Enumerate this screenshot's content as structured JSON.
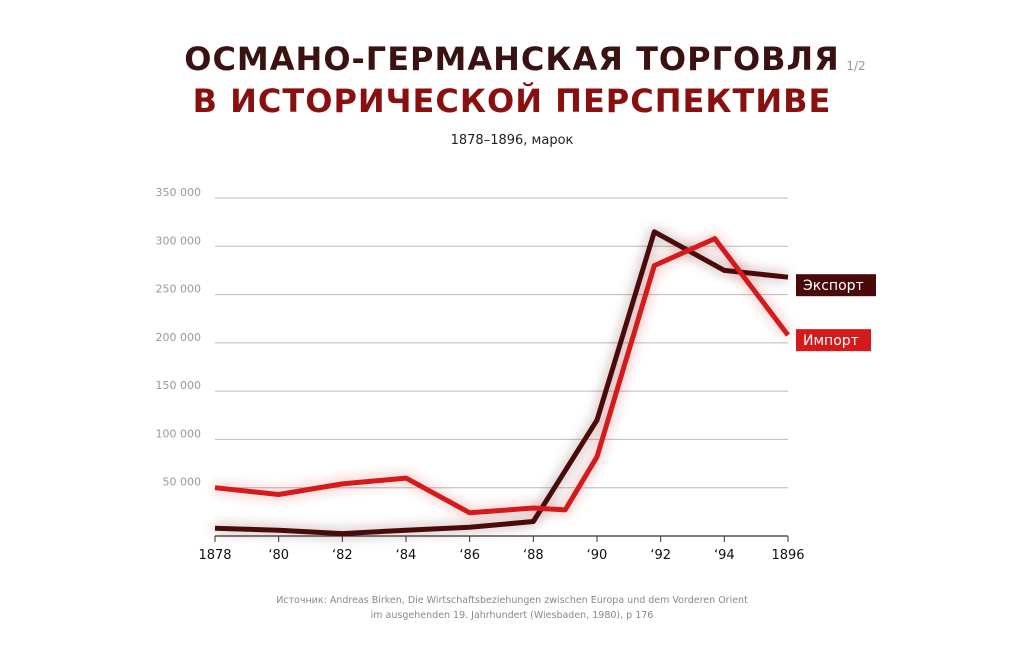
{
  "title": {
    "line1": "ОСМАНО-ГЕРМАНСКАЯ ТОРГОВЛЯ",
    "line2": "В ИСТОРИЧЕСКОЙ ПЕРСПЕКТИВЕ"
  },
  "subtitle": "1878–1896, марок",
  "page_indicator": "1/2",
  "source": {
    "line1": "Источник: Andreas Birken, Die Wirtschaftsbeziehungen zwischen Europa und dem Vorderen Orient",
    "line2": "im ausgehenden 19. Jahrhundert (Wiesbaden, 1980), p 176"
  },
  "colors": {
    "export": "#4a0a0a",
    "import": "#d41a1a",
    "grid": "#bbbbbb",
    "axis": "#333333"
  },
  "chart_data": {
    "type": "line",
    "title": "ОСМАНО-ГЕРМАНСКАЯ ТОРГОВЛЯ В ИСТОРИЧЕСКОЙ ПЕРСПЕКТИВЕ",
    "subtitle": "1878–1896, марок",
    "xlim": [
      1878,
      1896
    ],
    "ylim": [
      0,
      350000
    ],
    "grid": true,
    "legend": "right, at line ends",
    "x_ticks": [
      {
        "value": 1878,
        "label": "1878"
      },
      {
        "value": 1880,
        "label": "‘80"
      },
      {
        "value": 1882,
        "label": "‘82"
      },
      {
        "value": 1884,
        "label": "‘84"
      },
      {
        "value": 1886,
        "label": "‘86"
      },
      {
        "value": 1888,
        "label": "‘88"
      },
      {
        "value": 1890,
        "label": "‘90"
      },
      {
        "value": 1892,
        "label": "‘92"
      },
      {
        "value": 1894,
        "label": "‘94"
      },
      {
        "value": 1896,
        "label": "1896"
      }
    ],
    "y_ticks": [
      {
        "value": 50000,
        "label": "50 000"
      },
      {
        "value": 100000,
        "label": "100 000"
      },
      {
        "value": 150000,
        "label": "150 000"
      },
      {
        "value": 200000,
        "label": "200 000"
      },
      {
        "value": 250000,
        "label": "250 000"
      },
      {
        "value": 300000,
        "label": "300 000"
      },
      {
        "value": 350000,
        "label": "350 000"
      }
    ],
    "series": [
      {
        "name": "Экспорт",
        "color": "#4a0a0a",
        "points": [
          {
            "x": 1878,
            "y": 8000
          },
          {
            "x": 1880,
            "y": 6000
          },
          {
            "x": 1882,
            "y": 2500
          },
          {
            "x": 1884,
            "y": 6000
          },
          {
            "x": 1886,
            "y": 9000
          },
          {
            "x": 1888,
            "y": 15000
          },
          {
            "x": 1890,
            "y": 120000
          },
          {
            "x": 1891.8,
            "y": 315000
          },
          {
            "x": 1894,
            "y": 275000
          },
          {
            "x": 1896,
            "y": 268000
          }
        ]
      },
      {
        "name": "Импорт",
        "color": "#d41a1a",
        "points": [
          {
            "x": 1878,
            "y": 50000
          },
          {
            "x": 1880,
            "y": 43000
          },
          {
            "x": 1882,
            "y": 54000
          },
          {
            "x": 1884,
            "y": 60000
          },
          {
            "x": 1886,
            "y": 24000
          },
          {
            "x": 1888,
            "y": 29000
          },
          {
            "x": 1889,
            "y": 27000
          },
          {
            "x": 1890,
            "y": 82000
          },
          {
            "x": 1891.8,
            "y": 280000
          },
          {
            "x": 1893.7,
            "y": 308000
          },
          {
            "x": 1896,
            "y": 208000
          }
        ]
      }
    ]
  }
}
